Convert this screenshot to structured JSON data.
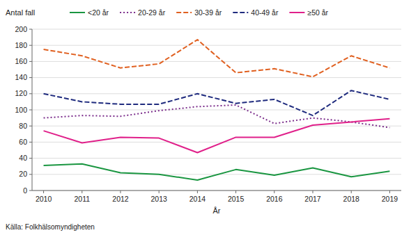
{
  "chart_data": {
    "type": "line",
    "ylabel": "Antal fall",
    "xlabel": "År",
    "annotations": [
      "Källa: Folkhälsomyndigheten"
    ],
    "x": [
      2010,
      2011,
      2012,
      2013,
      2014,
      2015,
      2016,
      2017,
      2018,
      2019
    ],
    "series": [
      {
        "name": "<20 år",
        "color": "#1a9641",
        "line_style": "solid",
        "values": [
          31,
          33,
          22,
          20,
          13,
          26,
          19,
          28,
          17,
          24
        ]
      },
      {
        "name": "20-29 år",
        "color": "#7b2d8b",
        "line_style": "dotted",
        "values": [
          90,
          93,
          92,
          99,
          104,
          106,
          83,
          90,
          85,
          78
        ]
      },
      {
        "name": "30-39 år",
        "color": "#e06020",
        "line_style": "dashed",
        "values": [
          175,
          167,
          152,
          157,
          187,
          146,
          151,
          141,
          167,
          152
        ]
      },
      {
        "name": "40-49 år",
        "color": "#1f2b7e",
        "line_style": "dashed",
        "values": [
          120,
          110,
          107,
          107,
          120,
          108,
          113,
          93,
          124,
          113
        ]
      },
      {
        "name": "≥50 år",
        "color": "#e0208a",
        "line_style": "solid",
        "values": [
          74,
          59,
          66,
          65,
          47,
          66,
          66,
          81,
          85,
          89
        ]
      }
    ],
    "xlim": [
      2009.7,
      2019.3
    ],
    "xticks": [
      2010,
      2011,
      2012,
      2013,
      2014,
      2015,
      2016,
      2017,
      2018,
      2019
    ],
    "ylim": [
      0,
      200
    ],
    "yticks": [
      0,
      20,
      40,
      60,
      80,
      100,
      120,
      140,
      160,
      180,
      200
    ],
    "grid": true,
    "legend": "top"
  }
}
